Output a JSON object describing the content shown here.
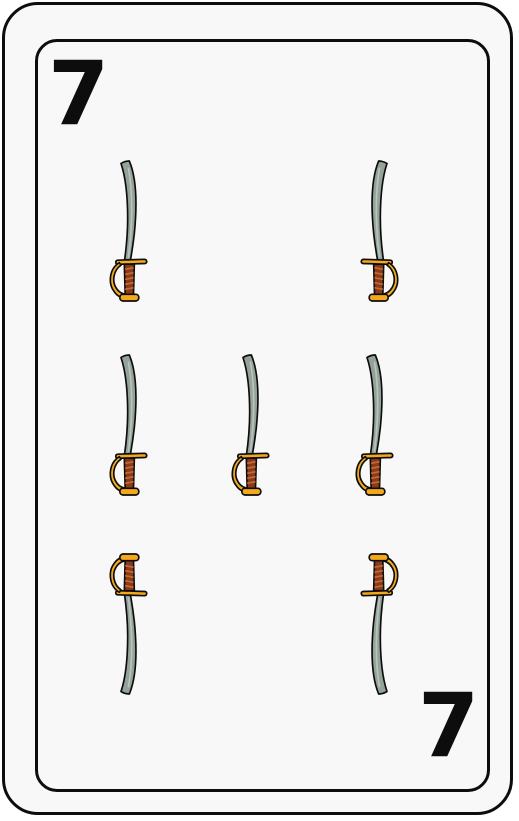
{
  "card": {
    "rank_top": "7",
    "rank_bottom": "7",
    "suit": "swords",
    "pip_count": 7,
    "pip_icon": "sword-icon"
  },
  "colors": {
    "card_background": "#f8f8f8",
    "outline": "#0d0d0d",
    "blade": "#94a39a",
    "blade_shine": "#b8c4bc",
    "guard": "#f4a91c",
    "grip": "#8a3b1e",
    "grip_wrap": "#c86a2e"
  }
}
